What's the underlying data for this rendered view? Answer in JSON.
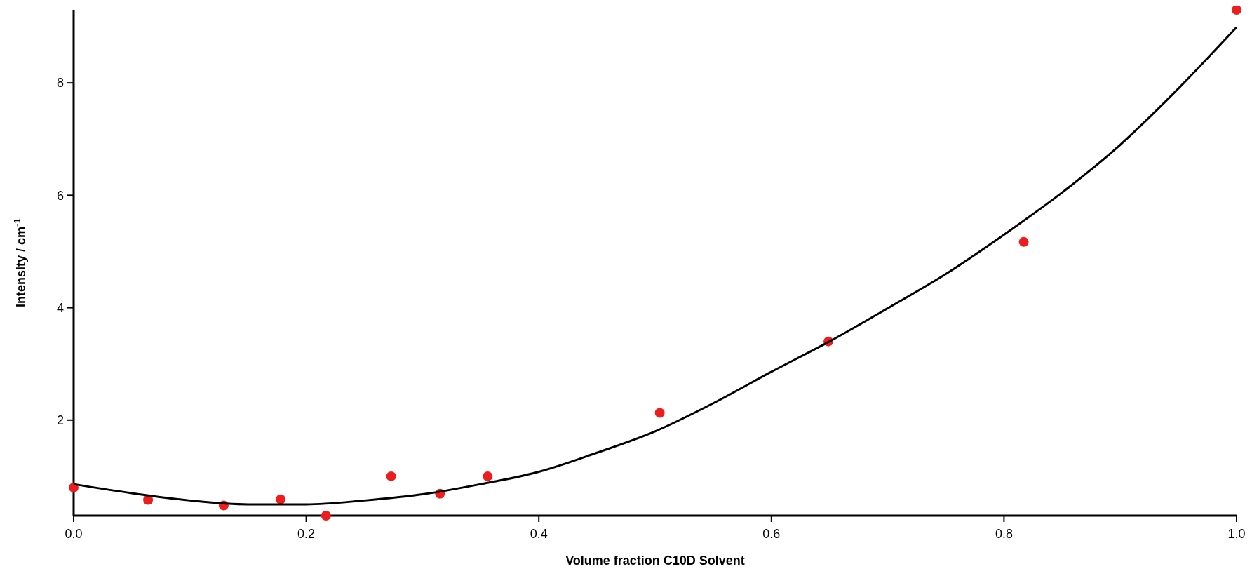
{
  "chart_data": {
    "type": "scatter",
    "xlabel": "Volume fraction C10D Solvent",
    "ylabel": "Intensity / cm$^{-1}$",
    "xlim": [
      0,
      1
    ],
    "ylim": [
      0.3,
      9.3
    ],
    "xticks": [
      {
        "value": 0,
        "label": "0.0"
      },
      0.2,
      0.4,
      0.6,
      0.8,
      {
        "value": 1,
        "label": "1.0"
      }
    ],
    "yticks": [
      2,
      4,
      6,
      8
    ],
    "grid": false,
    "series": [
      {
        "marker": "circle",
        "color": "#ee1c1c",
        "x": [
          0,
          0.064,
          0.129,
          0.178,
          0.217,
          0.273,
          0.315,
          0.356,
          0.504,
          0.649,
          0.817,
          1.0
        ],
        "values": [
          0.8,
          0.58,
          0.48,
          0.59,
          0.3,
          1.0,
          0.69,
          1.0,
          2.13,
          3.4,
          5.17,
          9.3
        ]
      },
      {
        "type": "line",
        "color": "#000000",
        "line_style": "solid",
        "x": [
          0,
          0.05,
          0.1,
          0.15,
          0.2,
          0.25,
          0.3,
          0.35,
          0.4,
          0.45,
          0.5,
          0.55,
          0.6,
          0.65,
          0.7,
          0.75,
          0.8,
          0.85,
          0.9,
          0.95,
          1.0
        ],
        "values": [
          0.86,
          0.7,
          0.57,
          0.5,
          0.5,
          0.57,
          0.68,
          0.86,
          1.08,
          1.42,
          1.8,
          2.3,
          2.86,
          3.4,
          3.99,
          4.6,
          5.3,
          6.05,
          6.9,
          7.9,
          8.99
        ]
      }
    ]
  }
}
